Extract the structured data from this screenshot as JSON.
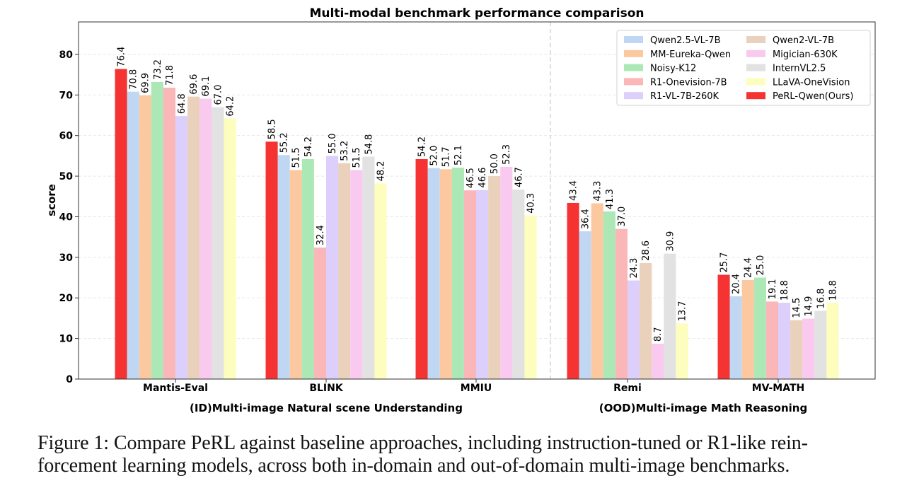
{
  "chart_data": {
    "type": "bar",
    "title": "Multi-modal benchmark performance comparison",
    "ylabel": "score",
    "ylim": [
      0,
      88
    ],
    "yticks": [
      0,
      10,
      20,
      30,
      40,
      50,
      60,
      70,
      80
    ],
    "grid": "horizontal dashed",
    "legend_position": "top-right",
    "categories": [
      "Mantis-Eval",
      "BLINK",
      "MMIU",
      "Remi",
      "MV-MATH"
    ],
    "groups": [
      {
        "label": "(ID)Multi-image Natural scene Understanding",
        "categories": [
          "Mantis-Eval",
          "BLINK",
          "MMIU"
        ]
      },
      {
        "label": "(OOD)Multi-image Math Reasoning",
        "categories": [
          "Remi",
          "MV-MATH"
        ]
      }
    ],
    "series": [
      {
        "name": "PeRL-Qwen(Ours)",
        "color": "#f53333",
        "values": [
          76.4,
          58.5,
          54.2,
          43.4,
          25.7
        ]
      },
      {
        "name": "Qwen2.5-VL-7B",
        "color": "#c0d7f3",
        "values": [
          70.8,
          55.2,
          52.0,
          36.4,
          20.4
        ]
      },
      {
        "name": "MM-Eureka-Qwen",
        "color": "#fcc8a0",
        "values": [
          69.9,
          51.5,
          51.7,
          43.3,
          24.4
        ]
      },
      {
        "name": "Noisy-K12",
        "color": "#ace8b5",
        "values": [
          73.2,
          54.2,
          52.1,
          41.3,
          25.0
        ]
      },
      {
        "name": "R1-Onevision-7B",
        "color": "#fbb7b7",
        "values": [
          71.8,
          32.4,
          46.5,
          37.0,
          19.1
        ]
      },
      {
        "name": "R1-VL-7B-260K",
        "color": "#dccffb",
        "values": [
          64.8,
          55.0,
          46.6,
          24.3,
          18.8
        ]
      },
      {
        "name": "Qwen2-VL-7B",
        "color": "#e9d1bb",
        "values": [
          69.6,
          53.2,
          50.0,
          28.6,
          14.5
        ]
      },
      {
        "name": "Migician-630K",
        "color": "#f9c9ef",
        "values": [
          69.1,
          51.5,
          52.3,
          8.7,
          14.9
        ]
      },
      {
        "name": "InternVL2.5",
        "color": "#e2e2e2",
        "values": [
          67.0,
          54.8,
          46.7,
          30.9,
          16.8
        ]
      },
      {
        "name": "LLaVA-OneVision",
        "color": "#fdfdbd",
        "values": [
          64.2,
          48.2,
          40.3,
          13.7,
          18.8
        ]
      }
    ],
    "legend_order": [
      "Qwen2.5-VL-7B",
      "Qwen2-VL-7B",
      "MM-Eureka-Qwen",
      "Migician-630K",
      "Noisy-K12",
      "InternVL2.5",
      "R1-Onevision-7B",
      "LLaVA-OneVision",
      "R1-VL-7B-260K",
      "PeRL-Qwen(Ours)"
    ],
    "value_labels": [
      [
        "76.4",
        "70.8",
        "69.9",
        "73.2",
        "71.8",
        "64.8",
        "69.6",
        "69.1",
        "67.0",
        "64.2"
      ],
      [
        "58.5",
        "55.2",
        "51.5",
        "54.2",
        "32.4",
        "55.0",
        "53.2",
        "51.5",
        "54.8",
        "48.2"
      ],
      [
        "54.2",
        "52.0",
        "51.7",
        "52.1",
        "46.5",
        "46.6",
        "50.0",
        "52.3",
        "46.7",
        "40.3"
      ],
      [
        "43.4",
        "36.4",
        "43.3",
        "41.3",
        "37.0",
        "24.3",
        "28.6",
        "8.7",
        "30.9",
        "13.7"
      ],
      [
        "25.7",
        "20.4",
        "24.4",
        "25.0",
        "19.1",
        "18.8",
        "14.5",
        "14.9",
        "16.8",
        "18.8"
      ]
    ]
  },
  "caption": {
    "line1": "Figure 1: Compare PeRL against baseline approaches, including instruction-tuned or R1-like rein-",
    "line2": "forcement learning models, across both in-domain and out-of-domain multi-image benchmarks."
  }
}
